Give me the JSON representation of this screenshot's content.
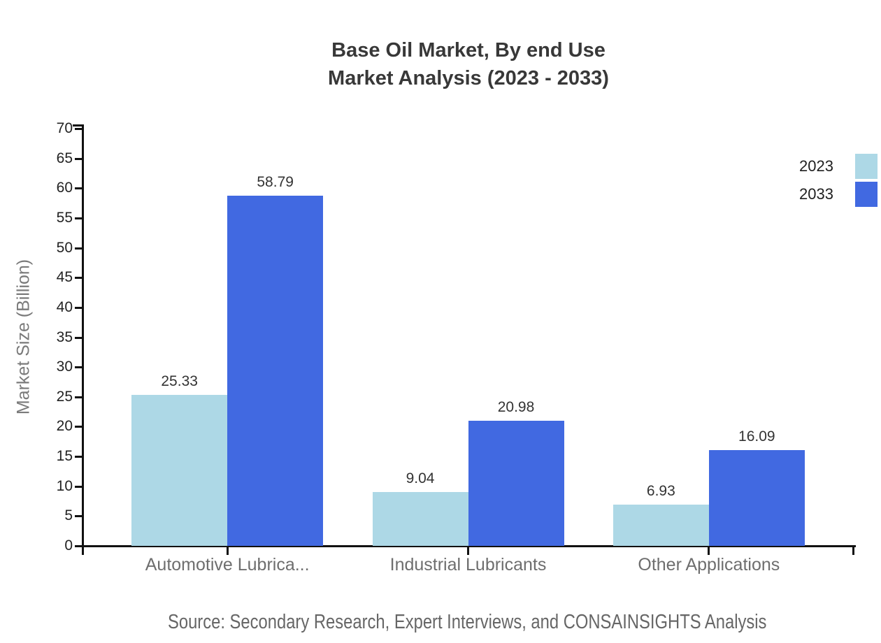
{
  "title": {
    "line1": "Base Oil Market, By end Use",
    "line2": "Market Analysis (2023 - 2033)"
  },
  "source": "Source: Secondary Research, Expert Interviews, and CONSAINSIGHTS Analysis",
  "chart_data": {
    "type": "bar",
    "title": "Base Oil Market, By end Use Market Analysis (2023 - 2033)",
    "categories": [
      "Automotive Lubrica...",
      "Industrial Lubricants",
      "Other Applications"
    ],
    "series": [
      {
        "name": "2023",
        "color": "#ADD8E6",
        "values": [
          25.33,
          9.04,
          6.93
        ]
      },
      {
        "name": "2033",
        "color": "#4169E1",
        "values": [
          58.79,
          20.98,
          16.09
        ]
      }
    ],
    "xlabel": "",
    "ylabel": "Market Size (Billion)",
    "ylim": [
      0,
      70
    ],
    "ytick_step": 5,
    "yticks": [
      0,
      5,
      10,
      15,
      20,
      25,
      30,
      35,
      40,
      45,
      50,
      55,
      60,
      65,
      70
    ],
    "value_label_decimals": 2,
    "grid": false,
    "legend_position": "top-right",
    "axis_color": "#111111",
    "text_colors": {
      "title": "#383838",
      "tick_labels": "#222222",
      "value_labels": "#333333",
      "category_labels": "#6e6e6e",
      "y_axis_title": "#7a7a7a",
      "source": "#666666"
    }
  }
}
